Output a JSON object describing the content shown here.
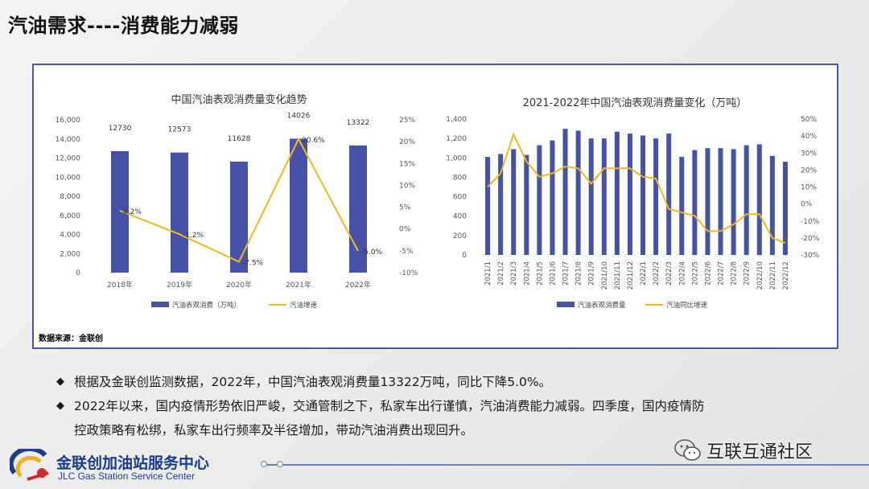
{
  "slide": {
    "title": "汽油需求----消费能力减弱",
    "source": "数据来源：金联创",
    "bullets": [
      "根据及金联创监测数据，2022年，中国汽油表观消费量13322万吨，同比下降5.0%。",
      "2022年以来，国内疫情形势依旧严峻，交通管制之下，私家车出行谨慎，汽油消费能力减弱。四季度，国内疫情防",
      "控政策略有松绑，私家车出行频率及半径增加，带动汽油消费出现回升。"
    ],
    "bullet_symbol": "◆",
    "logo": {
      "name": "金联创加油站服务中心",
      "english": "JLC Gas Station Service Center"
    },
    "watermark": "互联互通社区",
    "colors": {
      "bar": "#4652a8",
      "line": "#f2b91a",
      "frame": "#4a58a6"
    }
  },
  "chart_data": [
    {
      "type": "bar",
      "title": "中国汽油表观消费量变化趋势",
      "categories": [
        "2018年",
        "2019年",
        "2020年",
        "2021年",
        "2022年"
      ],
      "series": [
        {
          "name": "汽油表观消费（万吨）",
          "type": "bar",
          "axis": "left",
          "values": [
            12730,
            12573,
            11628,
            14026,
            13322
          ],
          "labels": [
            "12730",
            "12573",
            "11628",
            "14026",
            "13322"
          ]
        },
        {
          "name": "汽油增速",
          "type": "line",
          "axis": "right",
          "values": [
            4.2,
            -1.2,
            -7.5,
            20.6,
            -5.0
          ],
          "labels": [
            "4.2%",
            "-1.2%",
            "-7.5%",
            "20.6%",
            "-5.0%"
          ]
        }
      ],
      "y_left": {
        "min": 0,
        "max": 16000,
        "ticks": [
          "0",
          "2,000",
          "4,000",
          "6,000",
          "8,000",
          "10,000",
          "12,000",
          "14,000",
          "16,000"
        ]
      },
      "y_right": {
        "min": -10,
        "max": 25,
        "ticks": [
          "-10%",
          "-5%",
          "0%",
          "5%",
          "10%",
          "15%",
          "20%",
          "25%"
        ]
      },
      "legend": "bottom",
      "grid": false
    },
    {
      "type": "bar",
      "title": "2021-2022年中国汽油表观消费量变化（万吨）",
      "categories": [
        "2021/1",
        "2021/2",
        "2021/3",
        "2021/4",
        "2021/5",
        "2021/6",
        "2021/7",
        "2021/8",
        "2021/9",
        "2021/10",
        "2021/11",
        "2021/12",
        "2022/1",
        "2022/2",
        "2022/3",
        "2022/4",
        "2022/5",
        "2022/6",
        "2022/7",
        "2022/8",
        "2022/9",
        "2022/10",
        "2022/11",
        "2022/12"
      ],
      "series": [
        {
          "name": "汽油表观消费量",
          "type": "bar",
          "axis": "left",
          "values": [
            1010,
            1040,
            1090,
            1030,
            1130,
            1180,
            1300,
            1280,
            1200,
            1200,
            1270,
            1250,
            1230,
            1200,
            1250,
            1010,
            1080,
            1100,
            1100,
            1090,
            1130,
            1140,
            1020,
            960
          ]
        },
        {
          "name": "汽油同比增速",
          "type": "line",
          "axis": "right",
          "values": [
            10,
            18,
            41,
            25,
            16,
            18,
            22,
            21,
            12,
            21,
            21,
            21,
            16,
            15,
            -3,
            -5,
            -7,
            -16,
            -16,
            -12,
            -6,
            -6,
            -20,
            -23
          ]
        }
      ],
      "y_left": {
        "min": 0,
        "max": 1400,
        "ticks": [
          "0",
          "200",
          "400",
          "600",
          "800",
          "1,000",
          "1,200",
          "1,400"
        ]
      },
      "y_right": {
        "min": -30,
        "max": 50,
        "ticks": [
          "-30%",
          "-20%",
          "-10%",
          "0%",
          "10%",
          "20%",
          "30%",
          "40%",
          "50%"
        ]
      },
      "legend": "bottom",
      "grid": false
    }
  ]
}
